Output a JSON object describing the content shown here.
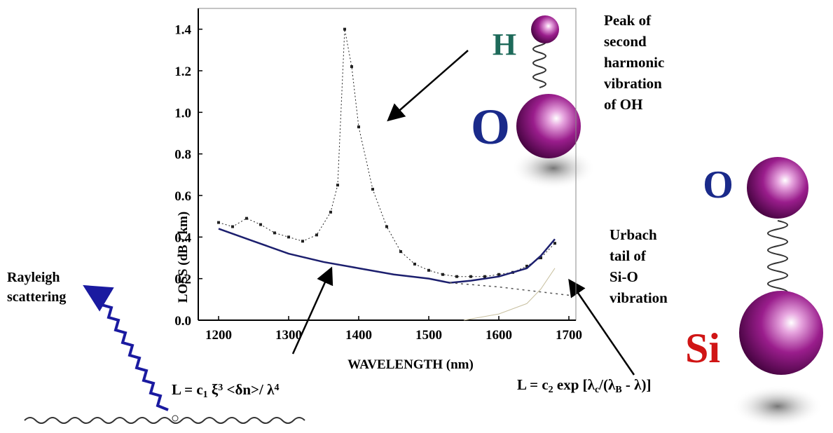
{
  "chart_data": {
    "type": "line",
    "y_label": "LOSS (dB / km)",
    "x_label": "WAVELENGTH (nm)",
    "xlim": [
      1171,
      1710
    ],
    "ylim": [
      0,
      1.5
    ],
    "xticks": [
      1200,
      1300,
      1400,
      1500,
      1600,
      1700
    ],
    "yticks": [
      {
        "value": 0,
        "label": "0.0"
      },
      0.2,
      0.4,
      0.6,
      0.8,
      {
        "value": 1,
        "label": "1.0"
      },
      1.2,
      1.4
    ],
    "series": [
      {
        "style": "dotted",
        "color": "#222222",
        "x": [
          1200,
          1220,
          1240,
          1260,
          1280,
          1300,
          1320,
          1340,
          1360,
          1370,
          1380,
          1390,
          1400,
          1420,
          1440,
          1460,
          1480,
          1500,
          1520,
          1540,
          1560,
          1580,
          1600,
          1620,
          1640,
          1660,
          1680
        ],
        "values": [
          0.47,
          0.45,
          0.49,
          0.46,
          0.42,
          0.4,
          0.38,
          0.41,
          0.52,
          0.65,
          1.4,
          1.22,
          0.93,
          0.63,
          0.45,
          0.33,
          0.27,
          0.24,
          0.22,
          0.21,
          0.21,
          0.21,
          0.22,
          0.23,
          0.26,
          0.3,
          0.37
        ]
      },
      {
        "style": "solid",
        "color": "#1c1f6e",
        "x": [
          1200,
          1250,
          1300,
          1350,
          1400,
          1450,
          1500,
          1530,
          1560,
          1600,
          1640,
          1660,
          1680
        ],
        "values": [
          0.44,
          0.38,
          0.32,
          0.28,
          0.25,
          0.22,
          0.2,
          0.18,
          0.19,
          0.21,
          0.25,
          0.31,
          0.39
        ]
      },
      {
        "style": "dashed",
        "color": "#555555",
        "x": [
          1530,
          1600,
          1650,
          1700
        ],
        "values": [
          0.18,
          0.16,
          0.14,
          0.12
        ]
      },
      {
        "style": "thin",
        "color": "#c8c0a0",
        "x": [
          1550,
          1600,
          1640,
          1660,
          1680
        ],
        "values": [
          0.0,
          0.03,
          0.08,
          0.15,
          0.25
        ]
      }
    ],
    "annotations": {
      "oh_peak": [
        "Peak of",
        "second",
        "harmonic",
        "vibration",
        "of OH"
      ],
      "urbach": [
        "Urbach",
        "tail of",
        "Si-O",
        "vibration"
      ],
      "rayleigh": [
        "Rayleigh",
        "scattering"
      ],
      "rayleigh_formula": [
        "L = c",
        "1",
        " ξ",
        "3",
        " <δn>/ λ",
        "4"
      ],
      "urbach_formula": [
        "L = c",
        "2",
        " exp [λ",
        "c",
        "/(λ",
        "B",
        " - λ)]"
      ]
    },
    "atoms": {
      "h": "H",
      "o_top": "O",
      "o_right": "O",
      "si": "Si"
    }
  }
}
